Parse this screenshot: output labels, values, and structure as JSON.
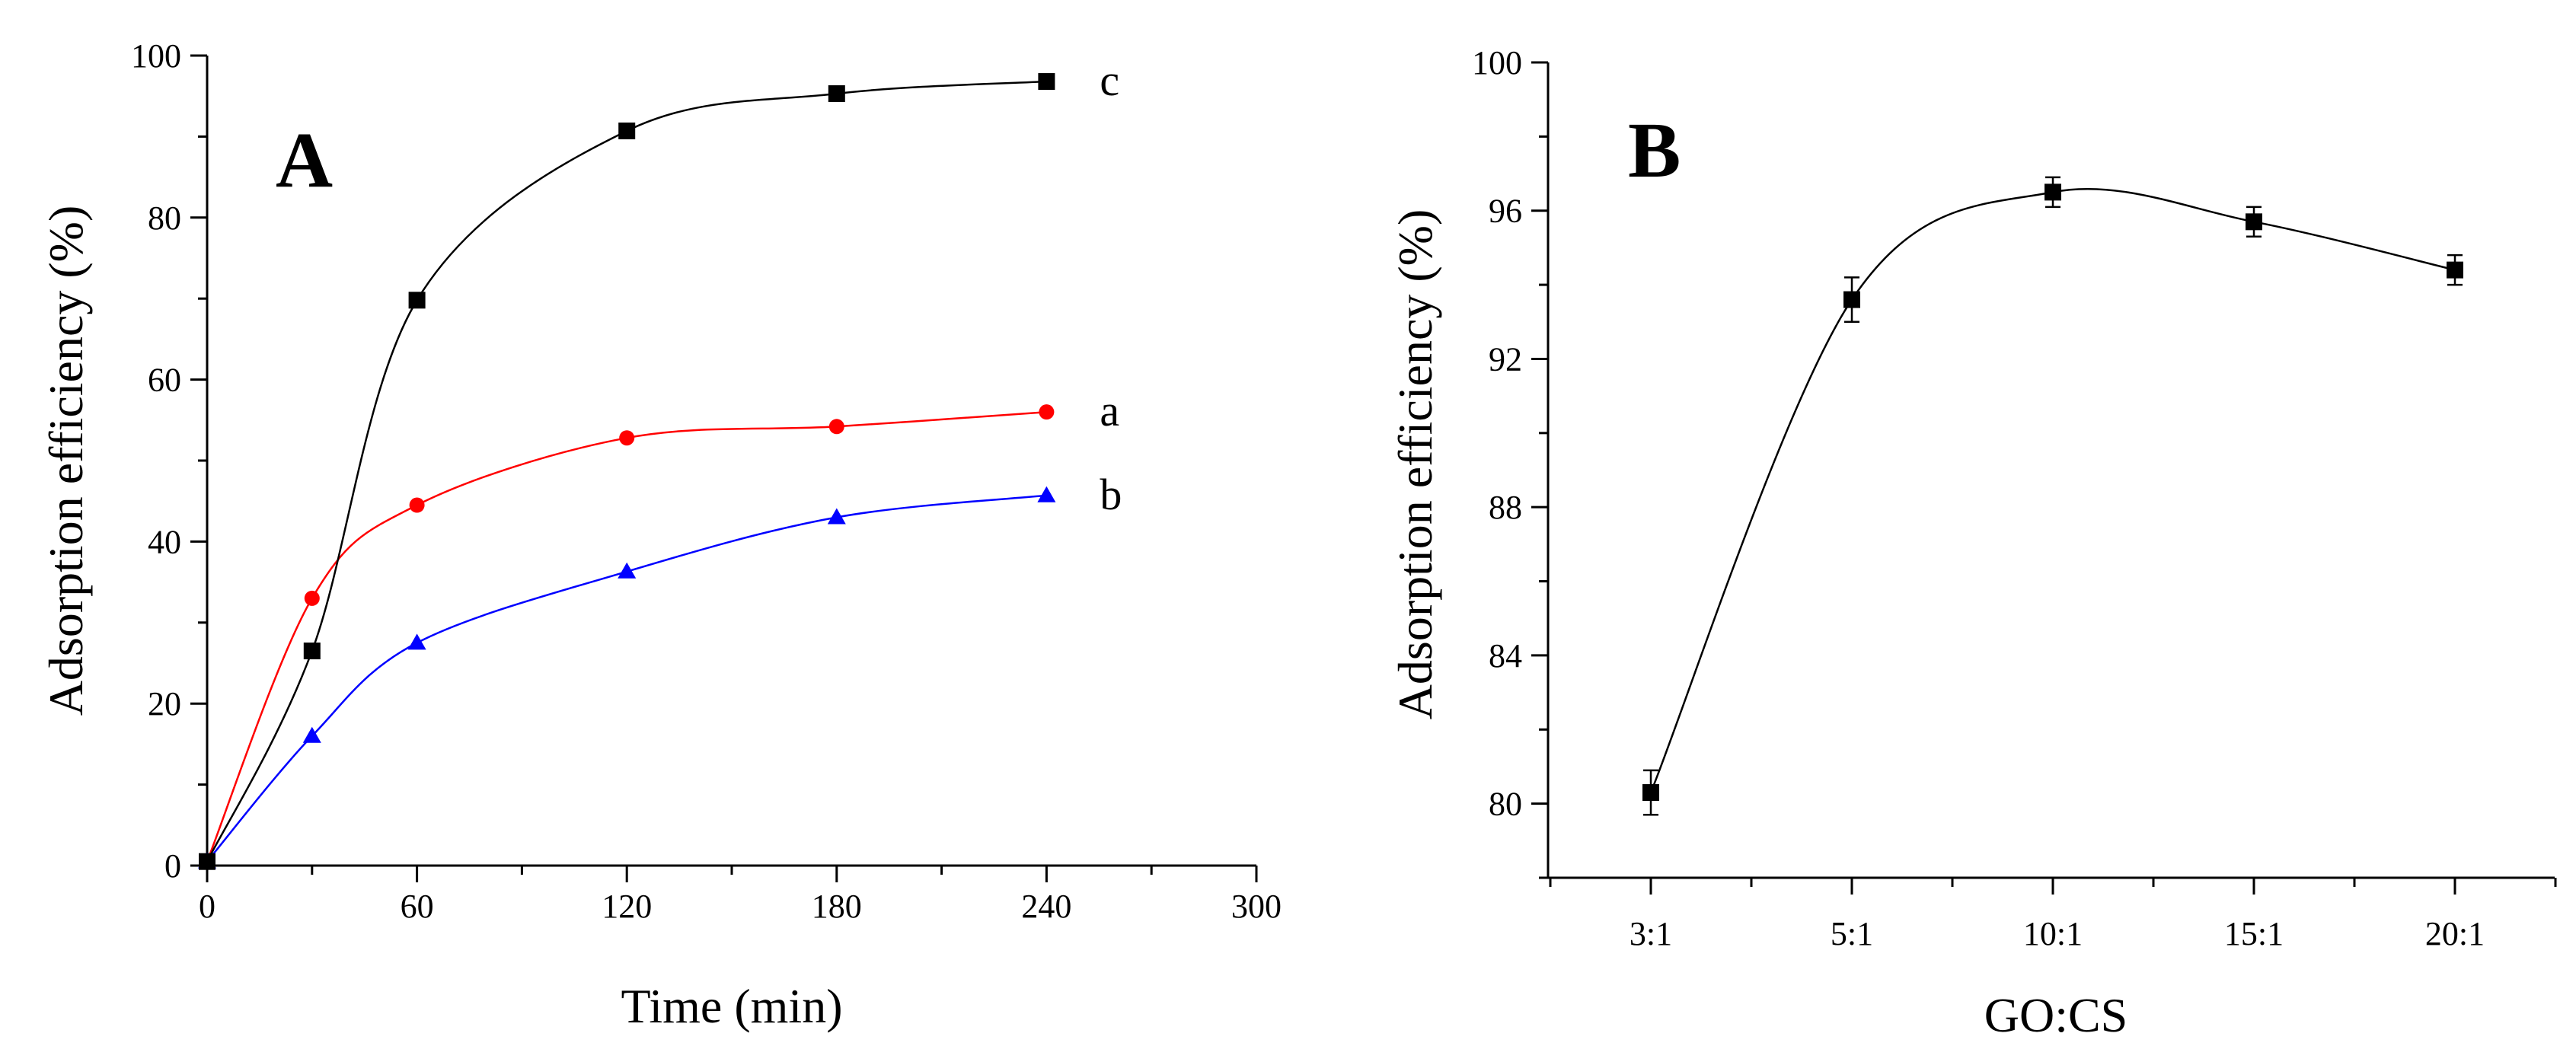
{
  "chart_data": [
    {
      "panel_label": "A",
      "type": "line",
      "xlabel": "Time (min)",
      "ylabel": "Adsorption efficiency (%)",
      "xlim": [
        0,
        300
      ],
      "ylim": [
        0,
        100
      ],
      "x_ticks": [
        "0",
        "60",
        "120",
        "180",
        "240",
        "300"
      ],
      "y_ticks": [
        "0",
        "20",
        "40",
        "60",
        "80",
        "100"
      ],
      "grid": false,
      "series": [
        {
          "name": "a",
          "color": "#ff0000",
          "marker": "circle",
          "x": [
            0,
            30,
            60,
            120,
            180,
            240
          ],
          "values": [
            0.5,
            33,
            44.5,
            52.8,
            54.2,
            56
          ]
        },
        {
          "name": "b",
          "color": "#0000ff",
          "marker": "triangle",
          "x": [
            0,
            30,
            60,
            120,
            180,
            240
          ],
          "values": [
            0.5,
            16,
            27.5,
            36.3,
            43,
            45.7
          ]
        },
        {
          "name": "c",
          "color": "#000000",
          "marker": "square",
          "x": [
            0,
            30,
            60,
            120,
            180,
            240
          ],
          "values": [
            0.5,
            26.5,
            69.8,
            90.7,
            95.3,
            96.8
          ]
        }
      ]
    },
    {
      "panel_label": "B",
      "type": "line",
      "xlabel": "GO:CS",
      "ylabel": "Adsorption efficiency (%)",
      "categories": [
        "3:1",
        "5:1",
        "10:1",
        "15:1",
        "20:1"
      ],
      "ylim": [
        78,
        100
      ],
      "y_ticks": [
        "80",
        "84",
        "88",
        "92",
        "96",
        "100"
      ],
      "grid": false,
      "series": [
        {
          "name": "GO:CS",
          "color": "#000000",
          "marker": "square",
          "values": [
            80.3,
            93.6,
            96.5,
            95.7,
            94.4
          ],
          "error": [
            0.6,
            0.6,
            0.4,
            0.4,
            0.4
          ]
        }
      ]
    }
  ]
}
